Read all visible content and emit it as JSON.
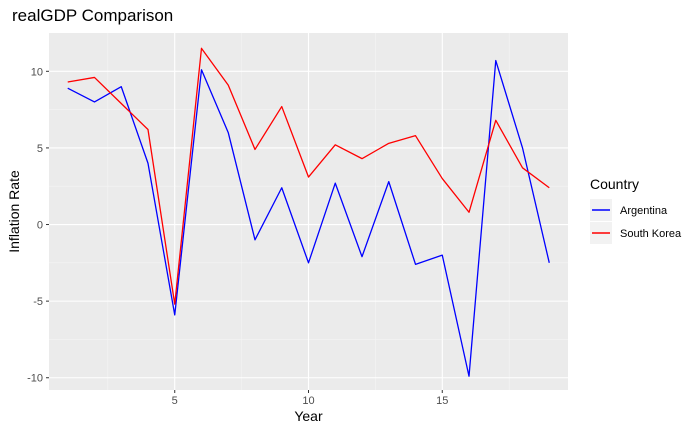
{
  "chart_data": {
    "type": "line",
    "title": "realGDP Comparison",
    "xlabel": "Year",
    "ylabel": "Inflation Rate",
    "xlim": [
      0.3,
      19.7
    ],
    "ylim": [
      -10.8,
      12.5
    ],
    "x_ticks": [
      5,
      10,
      15
    ],
    "x_tick_labels": [
      "5",
      "10",
      "15"
    ],
    "x_minor_ticks": [
      2.5,
      7.5,
      12.5,
      17.5
    ],
    "y_ticks": [
      -10,
      -5,
      0,
      5,
      10
    ],
    "y_tick_labels": [
      "-10",
      "-5",
      "0",
      "5",
      "10"
    ],
    "y_minor_ticks": [
      -7.5,
      -2.5,
      2.5,
      7.5
    ],
    "grid": true,
    "legend": {
      "title": "Country",
      "position": "right"
    },
    "x": [
      1,
      2,
      3,
      4,
      5,
      6,
      7,
      8,
      9,
      10,
      11,
      12,
      13,
      14,
      15,
      16,
      17,
      18,
      19
    ],
    "series": [
      {
        "name": "Argentina",
        "color": "#0000ff",
        "values": [
          8.9,
          8.0,
          9.0,
          4.0,
          -5.9,
          10.1,
          6.0,
          -1.0,
          2.4,
          -2.5,
          2.7,
          -2.1,
          2.8,
          -2.6,
          -2.0,
          -9.9,
          10.7,
          5.0,
          -2.5
        ]
      },
      {
        "name": "South Korea",
        "color": "#ff0000",
        "values": [
          9.3,
          9.6,
          7.9,
          6.2,
          -5.2,
          11.5,
          9.1,
          4.9,
          7.7,
          3.1,
          5.2,
          4.3,
          5.3,
          5.8,
          3.0,
          0.8,
          6.8,
          3.7,
          2.4
        ]
      }
    ]
  }
}
